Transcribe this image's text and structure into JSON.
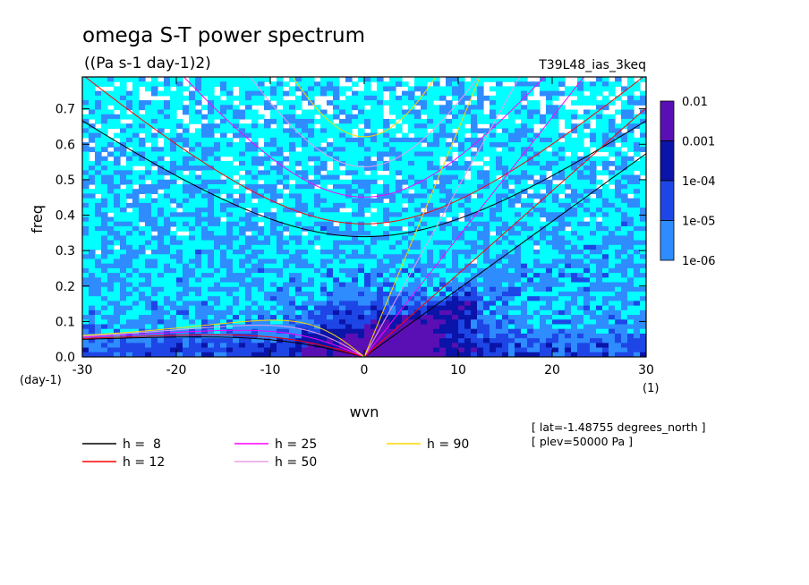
{
  "chart_data": {
    "type": "heatmap",
    "title": "omega S-T power spectrum",
    "subtitle": "((Pa s-1 day-1)2)",
    "experiment": "T39L48_ias_3keq",
    "xlabel": "wvn",
    "ylabel": "freq",
    "x_unit": "(1)",
    "y_unit": "(day-1)",
    "xlim": [
      -30,
      30
    ],
    "ylim": [
      0,
      0.79
    ],
    "x_ticks": [
      -30,
      -20,
      -10,
      0,
      10,
      20,
      30
    ],
    "y_ticks": [
      0.0,
      0.1,
      0.2,
      0.3,
      0.4,
      0.5,
      0.6,
      0.7
    ],
    "x_tick_labels": [
      "-30",
      "-20",
      "-10",
      "0",
      "10",
      "20",
      "30"
    ],
    "y_tick_labels": [
      "0.0",
      "0.1",
      "0.2",
      "0.3",
      "0.4",
      "0.5",
      "0.6",
      "0.7"
    ],
    "colorbar": {
      "levels": [
        "0.01",
        "0.001",
        "1e-04",
        "1e-05",
        "1e-06"
      ],
      "colors": [
        "#5a0fb4",
        "#0a14a8",
        "#1e46e6",
        "#2e8cff",
        "#00ffff"
      ]
    },
    "info_lines": [
      "[ lat=-1.48755 degrees_north ]",
      "[ plev=50000 Pa ]"
    ],
    "dispersion_curves": [
      {
        "label": "h =  8",
        "h": 8,
        "color": "#000000"
      },
      {
        "label": "h = 12",
        "h": 12,
        "color": "#ff0000"
      },
      {
        "label": "h = 25",
        "h": 25,
        "color": "#ff00ff"
      },
      {
        "label": "h = 50",
        "h": 50,
        "color": "#e8a0e8"
      },
      {
        "label": "h = 90",
        "h": 90,
        "color": "#ffd700"
      }
    ]
  }
}
